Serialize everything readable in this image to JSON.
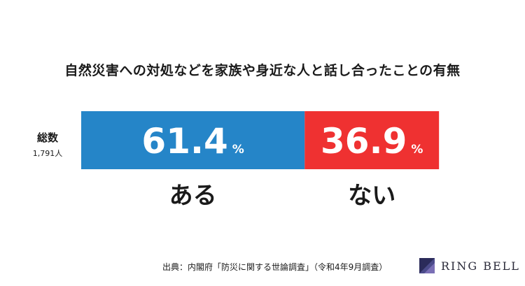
{
  "chart_data": {
    "type": "bar",
    "orientation": "horizontal-stacked",
    "title": "自然災害への対処などを家族や身近な人と話し合ったことの有無",
    "row": {
      "label": "総数",
      "count": "1,791人"
    },
    "categories": [
      "ある",
      "ない"
    ],
    "values": [
      61.4,
      36.9
    ],
    "unit": "%",
    "colors": [
      "#2585c8",
      "#ef3131"
    ]
  },
  "source": "出典：内閣府「防災に関する世論調査」（令和4年9月調査）",
  "logo": {
    "text": "RING BELL",
    "color": "#2b2b5a"
  }
}
